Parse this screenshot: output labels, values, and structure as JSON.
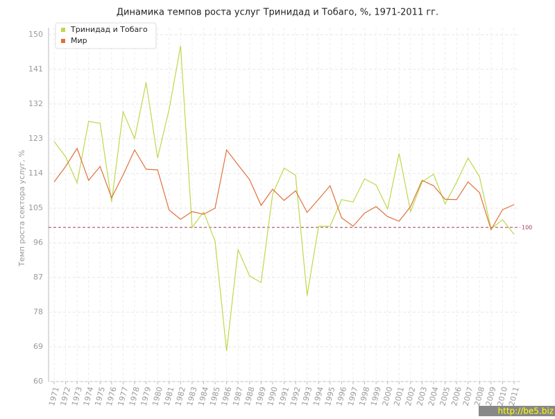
{
  "chart_data": {
    "type": "line",
    "title": "Динамика темпов роста услуг Тринидад и Тобаго, %, 1971-2011 гг.",
    "y_label": "Темп роста сектора услуг, %",
    "categories": [
      "1971",
      "1972",
      "1973",
      "1974",
      "1975",
      "1976",
      "1977",
      "1978",
      "1979",
      "1980",
      "1981",
      "1982",
      "1983",
      "1984",
      "1985",
      "1986",
      "1987",
      "1988",
      "1989",
      "1990",
      "1991",
      "1992",
      "1993",
      "1994",
      "1995",
      "1996",
      "1997",
      "1998",
      "1999",
      "2000",
      "2001",
      "2002",
      "2003",
      "2004",
      "2005",
      "2006",
      "2007",
      "2008",
      "2009",
      "2010",
      "2011"
    ],
    "series": [
      {
        "name": "Тринидад и Тобаго",
        "color": "#bcd94a",
        "values": [
          122.3,
          118.3,
          111.5,
          127.5,
          127,
          106.6,
          130,
          123,
          137.6,
          118,
          130.6,
          147.1,
          100,
          104,
          96.4,
          67.9,
          94.2,
          87.4,
          85.7,
          108.6,
          115.4,
          113.5,
          82.3,
          100.3,
          100.3,
          107.2,
          106.6,
          112.6,
          111,
          104.8,
          119.2,
          104.1,
          111.8,
          113.8,
          106.1,
          111.7,
          118,
          113.1,
          99.6,
          102,
          98.2
        ]
      },
      {
        "name": "Мир",
        "color": "#e0703a",
        "values": [
          111.8,
          115.8,
          120.5,
          112.2,
          115.8,
          107.7,
          113.6,
          120.1,
          115.1,
          114.9,
          104.5,
          102.1,
          104.1,
          103.4,
          105,
          120.1,
          116.2,
          112.4,
          105.7,
          109.9,
          107,
          109.5,
          103.9,
          107.3,
          110.8,
          102.5,
          100.3,
          103.7,
          105.4,
          102.8,
          101.6,
          105.4,
          112.2,
          110.8,
          107.3,
          107.2,
          111.8,
          109,
          99.4,
          104.6,
          105.9
        ]
      }
    ],
    "reference_line": 100,
    "reference_color": "#9b3b50",
    "ylim": [
      60,
      150
    ],
    "yticks": [
      60,
      69,
      78,
      87,
      96,
      105,
      114,
      123,
      132,
      141,
      150
    ],
    "grid": true,
    "legend": "top-left",
    "watermark": "http://be5.biz"
  }
}
